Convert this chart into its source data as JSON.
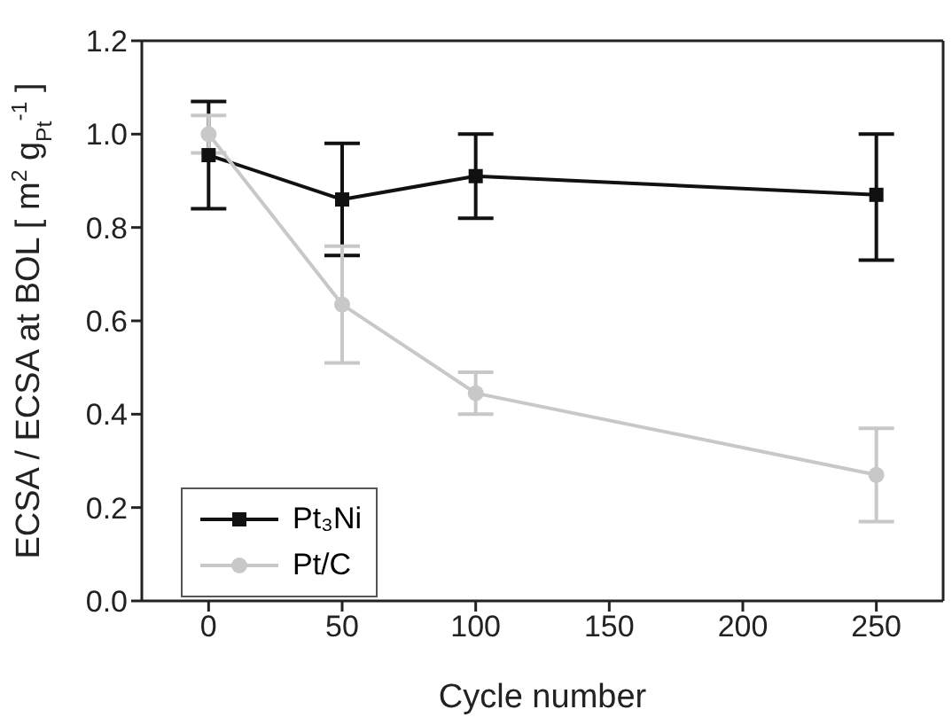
{
  "chart_data": {
    "type": "line",
    "xlabel": "Cycle number",
    "ylabel": "ECSA / ECSA at BOL [ m$^{2}$ g$_{Pt}$$^{-1}$ ]",
    "x": [
      0,
      50,
      100,
      250
    ],
    "series": [
      {
        "name": "Pt₃Ni",
        "color": "#111111",
        "marker": "square",
        "values": [
          0.955,
          0.86,
          0.91,
          0.87
        ],
        "errors": [
          [
            0.84,
            1.07
          ],
          [
            0.74,
            0.98
          ],
          [
            0.82,
            1.0
          ],
          [
            0.73,
            1.0
          ]
        ]
      },
      {
        "name": "Pt/C",
        "color": "#c8c8c8",
        "marker": "circle",
        "values": [
          1.0,
          0.635,
          0.445,
          0.27
        ],
        "errors": [
          [
            0.96,
            1.04
          ],
          [
            0.51,
            0.76
          ],
          [
            0.4,
            0.49
          ],
          [
            0.17,
            0.37
          ]
        ]
      }
    ],
    "xlim": [
      -25,
      275
    ],
    "xticks": [
      0,
      50,
      100,
      150,
      200,
      250
    ],
    "ylim": [
      0,
      1.2
    ],
    "yticks": [
      {
        "value": 0,
        "label": "0.0"
      },
      0.2,
      0.4,
      0.6,
      0.8,
      {
        "value": 1,
        "label": "1.0"
      },
      1.2
    ],
    "grid": false,
    "legend": "bottom left",
    "line_style": "solid"
  }
}
